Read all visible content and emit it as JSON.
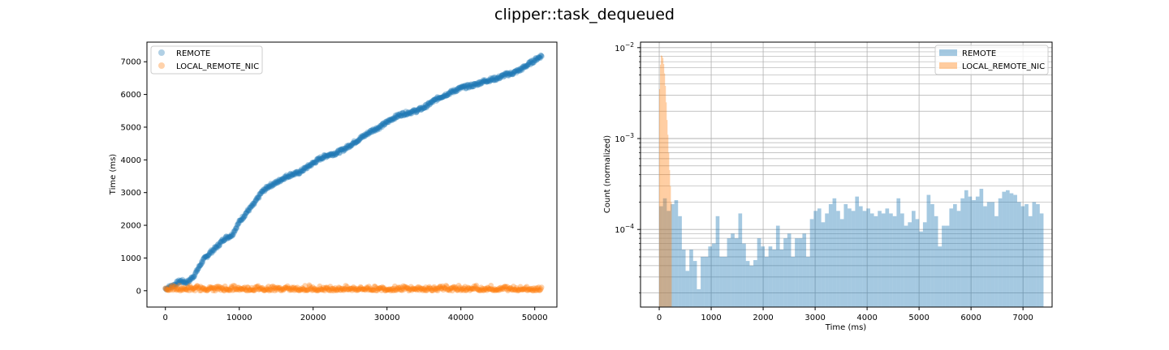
{
  "figure": {
    "title": "clipper::task_dequeued"
  },
  "colors": {
    "remote": "#1f77b4",
    "local": "#ff7f0e",
    "grid": "#b0b0b0"
  },
  "chart_data": [
    {
      "type": "scatter",
      "title": "",
      "xlabel": "",
      "ylabel": "Time (ms)",
      "xlim": [
        -2500,
        53000
      ],
      "ylim": [
        -500,
        7600
      ],
      "xticks": [
        0,
        10000,
        20000,
        30000,
        40000,
        50000
      ],
      "xtick_labels": [
        "0",
        "10000",
        "20000",
        "30000",
        "40000",
        "50000"
      ],
      "yticks": [
        0,
        1000,
        2000,
        3000,
        4000,
        5000,
        6000,
        7000
      ],
      "ytick_labels": [
        "0",
        "1000",
        "2000",
        "3000",
        "4000",
        "5000",
        "6000",
        "7000"
      ],
      "grid": false,
      "legend": "top-left",
      "series": [
        {
          "name": "REMOTE",
          "x": [
            0,
            1000,
            2000,
            3000,
            4000,
            5000,
            6000,
            7000,
            8000,
            9000,
            10000,
            11000,
            12000,
            13000,
            14000,
            15000,
            16000,
            17000,
            18000,
            19000,
            20000,
            21000,
            22000,
            23000,
            24000,
            25000,
            26000,
            27000,
            28000,
            29000,
            30000,
            31000,
            32000,
            33000,
            34000,
            35000,
            36000,
            37000,
            38000,
            39000,
            40000,
            41000,
            42000,
            43000,
            44000,
            45000,
            46000,
            47000,
            48000,
            49000,
            50000,
            51000
          ],
          "y": [
            60,
            150,
            300,
            250,
            500,
            900,
            1150,
            1350,
            1600,
            1700,
            2100,
            2400,
            2650,
            3000,
            3200,
            3300,
            3450,
            3550,
            3600,
            3750,
            3900,
            4050,
            4150,
            4200,
            4300,
            4450,
            4600,
            4750,
            4900,
            5000,
            5150,
            5300,
            5400,
            5450,
            5500,
            5600,
            5750,
            5900,
            6000,
            6100,
            6200,
            6250,
            6300,
            6400,
            6450,
            6500,
            6600,
            6650,
            6750,
            6900,
            7050,
            7200
          ]
        },
        {
          "name": "LOCAL_REMOTE_NIC",
          "x_range": [
            0,
            51000
          ],
          "y_typical": 80,
          "y_spread": [
            0,
            180
          ]
        }
      ]
    },
    {
      "type": "histogram",
      "title": "",
      "xlabel": "Time (ms)",
      "ylabel": "Count (normalized)",
      "yscale": "log",
      "xlim": [
        -360,
        7560
      ],
      "ylim": [
        1.4e-05,
        0.0115
      ],
      "xticks": [
        0,
        1000,
        2000,
        3000,
        4000,
        5000,
        6000,
        7000
      ],
      "xtick_labels": [
        "0",
        "1000",
        "2000",
        "3000",
        "4000",
        "5000",
        "6000",
        "7000"
      ],
      "ytick_labels": [
        "10^-4",
        "10^-3",
        "10^-2"
      ],
      "grid": true,
      "legend": "top-right",
      "series": [
        {
          "name": "REMOTE",
          "bin_width": 72.5,
          "bin_start": 0,
          "values": [
            0.00018,
            0.00022,
            0.00016,
            0.00019,
            0.00021,
            0.00014,
            6e-05,
            3.5e-05,
            6e-05,
            4.5e-05,
            2.2e-05,
            5e-05,
            5e-05,
            6.5e-05,
            7e-05,
            0.00014,
            5e-05,
            5e-05,
            8e-05,
            9e-05,
            8e-05,
            0.00015,
            7e-05,
            4.5e-05,
            4e-05,
            4.6e-05,
            8e-05,
            6.5e-05,
            5e-05,
            6.5e-05,
            6e-05,
            0.00011,
            6e-05,
            8e-05,
            9e-05,
            5e-05,
            8e-05,
            8e-05,
            9e-05,
            5e-05,
            0.00013,
            0.00016,
            0.00017,
            0.00012,
            0.00015,
            0.00019,
            0.00022,
            0.00016,
            0.00013,
            0.00019,
            0.00017,
            0.00016,
            0.00023,
            0.00018,
            0.00016,
            0.00017,
            0.00015,
            0.00014,
            0.00016,
            0.00015,
            0.00017,
            0.00015,
            0.00014,
            0.00022,
            0.00015,
            0.00011,
            0.00012,
            0.00016,
            0.00013,
            9.5e-05,
            0.00012,
            0.00024,
            0.00019,
            0.00014,
            6.5e-05,
            0.00011,
            0.00011,
            0.00017,
            0.00019,
            0.00016,
            0.00022,
            0.00027,
            0.00023,
            0.00021,
            0.00023,
            0.00028,
            0.00018,
            0.0002,
            0.0002,
            0.00014,
            0.00022,
            0.00026,
            0.00027,
            0.00025,
            0.00024,
            0.0002,
            0.00018,
            0.00019,
            0.00014,
            0.0002,
            0.00019,
            0.00015
          ]
        },
        {
          "name": "LOCAL_REMOTE_NIC",
          "bin_width": 16,
          "bin_start": 0,
          "values": [
            0.0035,
            0.0065,
            0.0082,
            0.0081,
            0.0077,
            0.0066,
            0.0052,
            0.0038,
            0.0025,
            0.0016,
            0.0011,
            0.0007,
            0.00045,
            0.0003,
            0.0002
          ]
        }
      ]
    }
  ]
}
